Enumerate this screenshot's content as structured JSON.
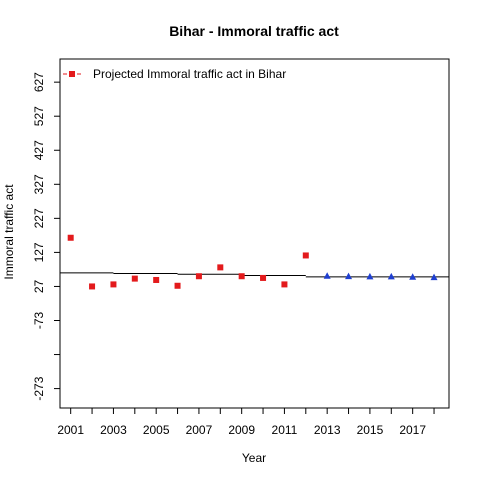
{
  "chart_data": {
    "type": "scatter",
    "title": "Bihar  -  Immoral traffic act",
    "xlabel": "Year",
    "ylabel": "Immoral traffic act",
    "xlim": [
      2000.5,
      2018.7
    ],
    "ylim": [
      -330,
      695
    ],
    "x_ticks": [
      2001,
      2003,
      2005,
      2007,
      2009,
      2011,
      2013,
      2015,
      2017
    ],
    "y_ticks": [
      -273,
      -73,
      27,
      127,
      227,
      327,
      427,
      527,
      627
    ],
    "legend": {
      "position": "top-left",
      "label": "Projected  Immoral traffic act  in  Bihar"
    },
    "series": [
      {
        "name": "Projected  Immoral traffic act  in  Bihar",
        "marker": "square",
        "color": "#e31a1c",
        "x": [
          2001,
          2002,
          2003,
          2004,
          2005,
          2006,
          2007,
          2008,
          2009,
          2010,
          2011,
          2012
        ],
        "y": [
          170,
          27,
          33,
          50,
          46,
          29,
          57,
          83,
          57,
          52,
          33,
          118
        ]
      },
      {
        "marker": "triangle",
        "color": "#1f3fd0",
        "x": [
          2013,
          2014,
          2015,
          2016,
          2017,
          2018
        ],
        "y": [
          57,
          56,
          55,
          55,
          54,
          53
        ]
      }
    ],
    "trend_segments": [
      {
        "x0": 2000.5,
        "x1": 2003,
        "y": 67
      },
      {
        "x0": 2003,
        "x1": 2006,
        "y": 65
      },
      {
        "x0": 2006,
        "x1": 2009,
        "y": 63
      },
      {
        "x0": 2009,
        "x1": 2012,
        "y": 59
      },
      {
        "x0": 2012,
        "x1": 2018.7,
        "y": 55
      }
    ]
  }
}
